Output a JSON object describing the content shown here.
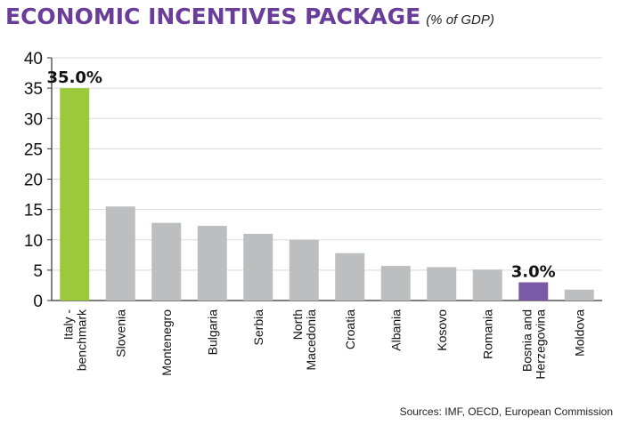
{
  "title": "ECONOMIC INCENTIVES PACKAGE",
  "subtitle": "(% of GDP)",
  "source": "Sources: IMF, OECD, European Commission",
  "colors": {
    "default": "#bcbec0",
    "italy": "#9bc93b",
    "bih": "#7a5aa6",
    "title": "#6a3d9a",
    "grid": "#d9d9d9"
  },
  "chart_data": {
    "type": "bar",
    "categories": [
      [
        "Italy -",
        "benchmark"
      ],
      [
        "Slovenia"
      ],
      [
        "Montenegro"
      ],
      [
        "Bulgaria"
      ],
      [
        "Serbia"
      ],
      [
        "North",
        "Macedonia"
      ],
      [
        "Croatia"
      ],
      [
        "Albania"
      ],
      [
        "Kosovo"
      ],
      [
        "Romania"
      ],
      [
        "Bosnia and",
        "Herzegovina"
      ],
      [
        "Moldova"
      ]
    ],
    "values": [
      35.0,
      15.5,
      12.8,
      12.3,
      11.0,
      10.0,
      7.8,
      5.7,
      5.5,
      5.1,
      3.0,
      1.8
    ],
    "bar_colors": [
      "italy",
      "default",
      "default",
      "default",
      "default",
      "default",
      "default",
      "default",
      "default",
      "default",
      "bih",
      "default"
    ],
    "data_labels": [
      {
        "index": 0,
        "text": "35.0%"
      },
      {
        "index": 10,
        "text": "3.0%"
      }
    ],
    "y_ticks": [
      0,
      5,
      10,
      15,
      20,
      25,
      30,
      35,
      40
    ],
    "ylim": [
      0,
      40
    ],
    "grid": true,
    "xlabel": "",
    "ylabel": ""
  }
}
